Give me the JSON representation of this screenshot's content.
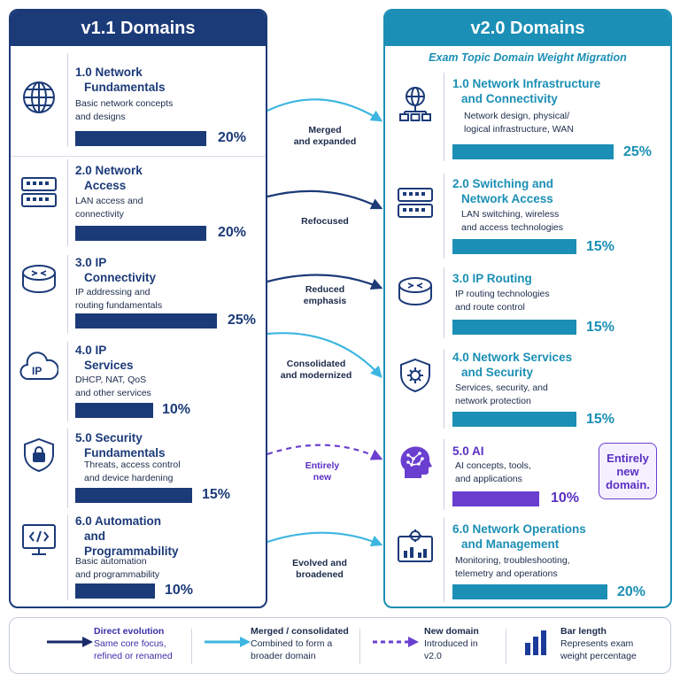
{
  "left": {
    "header": "v1.1 Domains",
    "domains": [
      {
        "title1": "1.0 Network",
        "title2": "Fundamentals",
        "desc1": "Basic network concepts",
        "desc2": "and designs",
        "desc3": "",
        "pct": "20%",
        "weight": 20,
        "icon": "globe-icon"
      },
      {
        "title1": "2.0 Network",
        "title2": "Access",
        "desc1": "LAN access and",
        "desc2": "connectivity",
        "desc3": "",
        "pct": "20%",
        "weight": 20,
        "icon": "switch-icon"
      },
      {
        "title1": "3.0 IP",
        "title2": "Connectivity",
        "desc1": "IP addressing and",
        "desc2": "routing fundamentals",
        "desc3": "",
        "pct": "25%",
        "weight": 25,
        "icon": "router-icon"
      },
      {
        "title1": "4.0 IP",
        "title2": "Services",
        "desc1": "DHCP, NAT, QoS",
        "desc2": "and other services",
        "desc3": "",
        "pct": "10%",
        "weight": 10,
        "icon": "ip-cloud-icon"
      },
      {
        "title1": "5.0 Security",
        "title2": "Fundamentals",
        "desc1": "Threats, access control",
        "desc2": "and device hardening",
        "desc3": "",
        "pct": "15%",
        "weight": 15,
        "icon": "shield-lock-icon"
      },
      {
        "title1": "6.0 Automation",
        "title2": "and",
        "title3": "Programmability",
        "desc1": "Basic automation",
        "desc2": "and programmability",
        "desc3": "",
        "pct": "10%",
        "weight": 10,
        "icon": "code-monitor-icon"
      }
    ]
  },
  "right": {
    "header": "v2.0 Domains",
    "subtitle": "Exam Topic Domain Weight Migration",
    "domains": [
      {
        "title1": "1.0 Network Infrastructure",
        "title2": "and Connectivity",
        "desc1": "Network design, physical/",
        "desc2": "logical infrastructure, WAN",
        "pct": "25%",
        "weight": 25,
        "icon": "network-tree-icon"
      },
      {
        "title1": "2.0 Switching and",
        "title2": "Network Access",
        "desc1": "LAN switching, wireless",
        "desc2": "and access technologies",
        "pct": "15%",
        "weight": 15,
        "icon": "switch-icon"
      },
      {
        "title1": "3.0 IP Routing",
        "title2": "",
        "desc1": "IP routing technologies",
        "desc2": "and route control",
        "pct": "15%",
        "weight": 15,
        "icon": "router-icon"
      },
      {
        "title1": "4.0 Network Services",
        "title2": "and Security",
        "desc1": "Services, security, and",
        "desc2": "network protection",
        "pct": "15%",
        "weight": 15,
        "icon": "shield-gear-icon"
      },
      {
        "title1": "5.0 AI",
        "title2": "",
        "desc1": "AI concepts, tools,",
        "desc2": "and applications",
        "pct": "10%",
        "weight": 10,
        "icon": "ai-head-icon"
      },
      {
        "title1": "6.0 Network Operations",
        "title2": "and Management",
        "desc1": "Monitoring, troubleshooting,",
        "desc2": "telemetry and operations",
        "pct": "20%",
        "weight": 20,
        "icon": "dashboard-gear-icon"
      }
    ],
    "badge1": "Entirely",
    "badge2": "new",
    "badge3": "domain."
  },
  "connectors": [
    {
      "line1": "Merged",
      "line2": "and expanded",
      "style": "light-blue"
    },
    {
      "line1": "Refocused",
      "line2": "",
      "style": "navy"
    },
    {
      "line1": "Reduced",
      "line2": "emphasis",
      "style": "navy"
    },
    {
      "line1": "Consolidated",
      "line2": "and modernized",
      "style": "light-blue"
    },
    {
      "line1": "Entirely",
      "line2": "new",
      "style": "purple-dashed"
    },
    {
      "line1": "Evolved and",
      "line2": "broadened",
      "style": "light-blue"
    }
  ],
  "legend": {
    "direct": {
      "title": "Direct evolution",
      "desc1": "Same core focus,",
      "desc2": "refined or renamed"
    },
    "merged": {
      "title": "Merged / consolidated",
      "desc1": "Combined to form a",
      "desc2": "broader domain"
    },
    "new": {
      "title": "New domain",
      "desc1": "Introduced in",
      "desc2": "v2.0"
    },
    "bar": {
      "title": "Bar length",
      "desc1": "Represents exam",
      "desc2": "weight percentage"
    }
  },
  "colors": {
    "navy": "#1b3a78",
    "teal": "#1b8fb5",
    "light_blue": "#3cb6e0",
    "purple": "#6a3fd0"
  }
}
